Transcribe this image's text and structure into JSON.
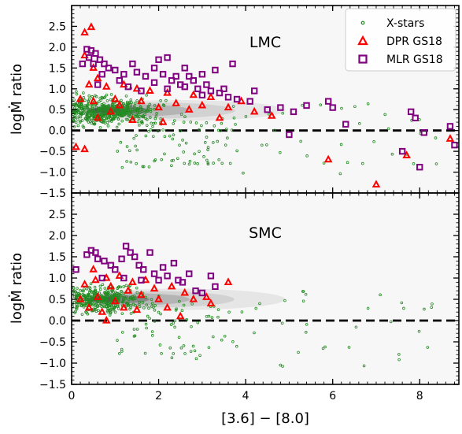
{
  "chart_data": [
    {
      "type": "scatter",
      "panel": "LMC",
      "panel_label": "LMC",
      "xlabel": "[3.6] − [8.0]",
      "ylabel": "logṀ ratio",
      "xlim": [
        0,
        8.9
      ],
      "ylim": [
        -1.5,
        3.0
      ],
      "xticks": [
        0,
        2,
        4,
        6,
        8
      ],
      "xtick_labels": [
        "0",
        "2",
        "4",
        "6",
        "8"
      ],
      "yticks": [
        -1.5,
        -1.0,
        -0.5,
        0.0,
        0.5,
        1.0,
        1.5,
        2.0,
        2.5
      ],
      "ytick_labels": [
        "−1.5",
        "−1.0",
        "−0.5",
        "0.0",
        "0.5",
        "1.0",
        "1.5",
        "2.0",
        "2.5"
      ],
      "reference_line": {
        "y": 0.0,
        "style": "dashed"
      },
      "density_contours": {
        "center": [
          0.8,
          0.48
        ],
        "extent_x": [
          0.0,
          5.3
        ]
      },
      "legend": {
        "placement": "top-right",
        "entries": [
          "X-stars",
          "DPR GS18",
          "MLR GS18"
        ]
      },
      "colors": {
        "X-stars": "#228b22",
        "DPR GS18": "#ff0000",
        "MLR GS18": "#800080"
      },
      "series": [
        {
          "name": "X-stars",
          "marker": "small open circle",
          "count_shown": 600
        },
        {
          "name": "DPR GS18",
          "marker": "open triangle",
          "points": [
            [
              0.3,
              2.35
            ],
            [
              0.45,
              2.48
            ],
            [
              0.3,
              1.8
            ],
            [
              0.5,
              1.5
            ],
            [
              0.6,
              1.25
            ],
            [
              0.4,
              1.1
            ],
            [
              0.8,
              1.05
            ],
            [
              1.2,
              1.1
            ],
            [
              1.5,
              1.0
            ],
            [
              1.8,
              0.95
            ],
            [
              2.2,
              0.9
            ],
            [
              2.8,
              0.85
            ],
            [
              3.2,
              0.8
            ],
            [
              0.2,
              0.75
            ],
            [
              0.5,
              0.7
            ],
            [
              1.0,
              0.75
            ],
            [
              1.6,
              0.7
            ],
            [
              2.4,
              0.65
            ],
            [
              3.0,
              0.6
            ],
            [
              3.6,
              0.55
            ],
            [
              1.1,
              0.6
            ],
            [
              2.0,
              0.55
            ],
            [
              2.7,
              0.5
            ],
            [
              4.2,
              0.45
            ],
            [
              4.6,
              0.35
            ],
            [
              0.6,
              0.3
            ],
            [
              1.4,
              0.25
            ],
            [
              2.1,
              0.2
            ],
            [
              3.4,
              0.3
            ],
            [
              0.3,
              -0.45
            ],
            [
              5.9,
              -0.7
            ],
            [
              7.0,
              -1.3
            ],
            [
              7.7,
              -0.6
            ],
            [
              8.7,
              -0.2
            ],
            [
              0.1,
              -0.4
            ],
            [
              3.9,
              0.7
            ],
            [
              0.9,
              0.45
            ]
          ]
        },
        {
          "name": "MLR GS18",
          "marker": "open square",
          "points": [
            [
              0.35,
              1.95
            ],
            [
              0.45,
              1.92
            ],
            [
              0.55,
              1.85
            ],
            [
              0.4,
              1.75
            ],
            [
              0.65,
              1.7
            ],
            [
              0.5,
              1.6
            ],
            [
              0.75,
              1.6
            ],
            [
              0.85,
              1.5
            ],
            [
              1.0,
              1.45
            ],
            [
              0.7,
              1.35
            ],
            [
              1.2,
              1.35
            ],
            [
              1.4,
              1.6
            ],
            [
              1.5,
              1.4
            ],
            [
              1.1,
              1.2
            ],
            [
              1.3,
              1.05
            ],
            [
              1.7,
              1.3
            ],
            [
              1.9,
              1.5
            ],
            [
              2.0,
              1.7
            ],
            [
              2.2,
              1.75
            ],
            [
              2.1,
              1.35
            ],
            [
              2.3,
              1.2
            ],
            [
              2.5,
              1.1
            ],
            [
              2.4,
              1.3
            ],
            [
              2.6,
              1.05
            ],
            [
              2.7,
              1.3
            ],
            [
              2.8,
              1.2
            ],
            [
              2.9,
              1.0
            ],
            [
              3.0,
              1.35
            ],
            [
              3.1,
              1.1
            ],
            [
              3.2,
              0.95
            ],
            [
              3.3,
              1.45
            ],
            [
              3.4,
              0.9
            ],
            [
              3.5,
              1.0
            ],
            [
              3.6,
              0.8
            ],
            [
              3.7,
              1.6
            ],
            [
              3.8,
              0.75
            ],
            [
              4.1,
              0.7
            ],
            [
              4.2,
              0.95
            ],
            [
              4.5,
              0.5
            ],
            [
              4.8,
              0.55
            ],
            [
              5.1,
              0.45
            ],
            [
              5.4,
              0.6
            ],
            [
              5.9,
              0.7
            ],
            [
              6.0,
              0.55
            ],
            [
              6.3,
              0.15
            ],
            [
              7.8,
              0.45
            ],
            [
              7.9,
              0.3
            ],
            [
              8.1,
              -0.05
            ],
            [
              8.7,
              0.1
            ],
            [
              8.8,
              -0.35
            ],
            [
              7.6,
              -0.5
            ],
            [
              8.0,
              -0.88
            ],
            [
              5.0,
              -0.1
            ],
            [
              1.6,
              0.95
            ],
            [
              1.9,
              1.15
            ],
            [
              2.2,
              1.0
            ],
            [
              2.6,
              1.5
            ],
            [
              3.0,
              0.85
            ],
            [
              0.25,
              1.6
            ],
            [
              0.6,
              1.1
            ]
          ]
        }
      ]
    },
    {
      "type": "scatter",
      "panel": "SMC",
      "panel_label": "SMC",
      "xlabel": "[3.6] − [8.0]",
      "ylabel": "logṀ ratio",
      "xlim": [
        0,
        8.9
      ],
      "ylim": [
        -1.5,
        3.0
      ],
      "xticks": [
        0,
        2,
        4,
        6,
        8
      ],
      "xtick_labels": [
        "0",
        "2",
        "4",
        "6",
        "8"
      ],
      "yticks": [
        -1.5,
        -1.0,
        -0.5,
        0.0,
        0.5,
        1.0,
        1.5,
        2.0,
        2.5
      ],
      "ytick_labels": [
        "−1.5",
        "−1.0",
        "−0.5",
        "0.0",
        "0.5",
        "1.0",
        "1.5",
        "2.0",
        "2.5"
      ],
      "reference_line": {
        "y": 0.0,
        "style": "dashed"
      },
      "density_contours": {
        "center": [
          0.7,
          0.5
        ],
        "extent_x": [
          0.0,
          5.3
        ]
      },
      "series": [
        {
          "name": "X-stars",
          "marker": "small open circle",
          "count_shown": 450
        },
        {
          "name": "DPR GS18",
          "marker": "open triangle",
          "points": [
            [
              0.5,
              1.2
            ],
            [
              0.55,
              0.95
            ],
            [
              0.8,
              1.0
            ],
            [
              1.1,
              1.05
            ],
            [
              1.4,
              0.9
            ],
            [
              1.7,
              0.95
            ],
            [
              0.3,
              0.85
            ],
            [
              0.9,
              0.8
            ],
            [
              1.3,
              0.7
            ],
            [
              1.9,
              0.75
            ],
            [
              2.3,
              0.8
            ],
            [
              2.6,
              0.65
            ],
            [
              0.2,
              0.5
            ],
            [
              0.6,
              0.55
            ],
            [
              1.0,
              0.45
            ],
            [
              1.6,
              0.6
            ],
            [
              2.0,
              0.5
            ],
            [
              2.8,
              0.5
            ],
            [
              3.1,
              0.55
            ],
            [
              3.2,
              0.4
            ],
            [
              3.6,
              0.9
            ],
            [
              0.7,
              0.2
            ],
            [
              1.5,
              0.25
            ],
            [
              2.2,
              0.3
            ],
            [
              2.5,
              0.1
            ],
            [
              0.8,
              0.0
            ],
            [
              0.4,
              0.3
            ],
            [
              1.2,
              0.3
            ]
          ]
        },
        {
          "name": "MLR GS18",
          "marker": "open square",
          "points": [
            [
              0.1,
              1.2
            ],
            [
              0.35,
              1.55
            ],
            [
              0.45,
              1.65
            ],
            [
              0.55,
              1.6
            ],
            [
              0.6,
              1.45
            ],
            [
              0.75,
              1.4
            ],
            [
              0.9,
              1.3
            ],
            [
              1.0,
              1.2
            ],
            [
              1.15,
              1.45
            ],
            [
              1.25,
              1.75
            ],
            [
              1.35,
              1.6
            ],
            [
              1.45,
              1.5
            ],
            [
              1.55,
              1.3
            ],
            [
              1.65,
              1.2
            ],
            [
              1.8,
              1.6
            ],
            [
              1.9,
              1.1
            ],
            [
              2.0,
              0.95
            ],
            [
              2.1,
              1.25
            ],
            [
              2.2,
              1.05
            ],
            [
              2.35,
              1.35
            ],
            [
              2.45,
              0.95
            ],
            [
              2.55,
              0.9
            ],
            [
              2.7,
              1.1
            ],
            [
              2.85,
              0.7
            ],
            [
              3.0,
              0.65
            ],
            [
              3.2,
              1.05
            ],
            [
              3.3,
              0.8
            ],
            [
              1.2,
              1.0
            ],
            [
              1.6,
              0.95
            ],
            [
              0.7,
              1.0
            ]
          ]
        }
      ]
    }
  ]
}
